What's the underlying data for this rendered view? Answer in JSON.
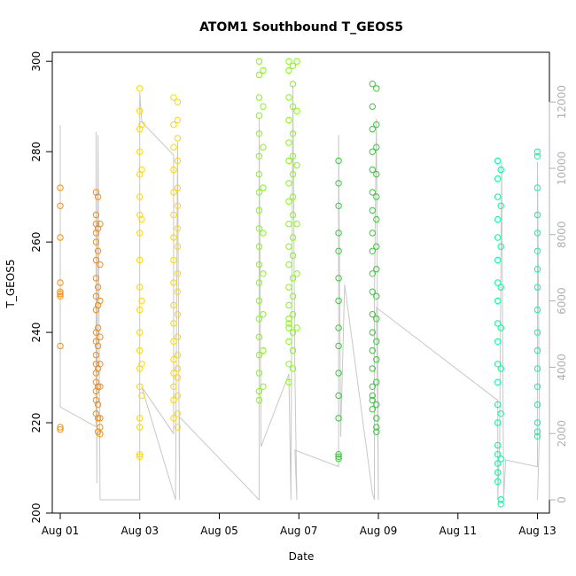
{
  "chart_data": {
    "type": "scatter",
    "title": "ATOM1 Southbound T_GEOS5",
    "xlabel": "Date",
    "ylabel": "T_GEOS5",
    "x_ticks": [
      "Aug 01",
      "Aug 03",
      "Aug 05",
      "Aug 07",
      "Aug 09",
      "Aug 11",
      "Aug 13"
    ],
    "x_tick_days": [
      1,
      3,
      5,
      7,
      9,
      11,
      13
    ],
    "xlim_days": [
      0.8,
      13.3
    ],
    "ylim": [
      200,
      302
    ],
    "y_ticks": [
      200,
      220,
      240,
      260,
      280,
      300
    ],
    "y2_ticks": [
      0,
      2000,
      4000,
      6000,
      8000,
      10000,
      12000
    ],
    "y2lim": [
      -400,
      13500
    ],
    "grid": false,
    "series": [
      {
        "color": "#ff8c00",
        "points": [
          [
            1.0,
            272
          ],
          [
            1.0,
            268
          ],
          [
            1.0,
            261
          ],
          [
            1.0,
            251
          ],
          [
            1.0,
            249
          ],
          [
            1.0,
            248.5
          ],
          [
            1.0,
            248
          ],
          [
            1.0,
            237
          ],
          [
            1.0,
            219
          ],
          [
            1.0,
            218.5
          ],
          [
            1.9,
            271
          ],
          [
            1.9,
            266
          ],
          [
            1.9,
            264
          ],
          [
            1.9,
            262
          ],
          [
            1.9,
            260
          ],
          [
            1.9,
            256
          ],
          [
            1.9,
            252
          ],
          [
            1.9,
            248
          ],
          [
            1.9,
            245
          ],
          [
            1.9,
            240
          ],
          [
            1.9,
            238
          ],
          [
            1.9,
            235
          ],
          [
            1.9,
            233
          ],
          [
            1.9,
            231
          ],
          [
            1.9,
            229
          ],
          [
            1.9,
            227
          ],
          [
            1.9,
            225
          ],
          [
            1.9,
            222
          ],
          [
            1.95,
            270
          ],
          [
            1.95,
            263
          ],
          [
            1.95,
            258
          ],
          [
            1.95,
            250
          ],
          [
            1.95,
            246
          ],
          [
            1.95,
            241
          ],
          [
            1.95,
            237
          ],
          [
            1.95,
            232
          ],
          [
            1.95,
            228
          ],
          [
            1.95,
            224
          ],
          [
            1.95,
            221
          ],
          [
            1.95,
            218
          ],
          [
            2.0,
            264
          ],
          [
            2.0,
            255
          ],
          [
            2.0,
            247
          ],
          [
            2.0,
            239
          ],
          [
            2.0,
            233
          ],
          [
            2.0,
            228
          ],
          [
            2.0,
            221
          ],
          [
            2.0,
            219
          ],
          [
            2.0,
            217.5
          ]
        ]
      },
      {
        "color": "#ffd700",
        "points": [
          [
            3.0,
            294
          ],
          [
            3.0,
            289
          ],
          [
            3.0,
            285
          ],
          [
            3.0,
            280
          ],
          [
            3.0,
            275
          ],
          [
            3.0,
            270
          ],
          [
            3.0,
            266
          ],
          [
            3.0,
            262
          ],
          [
            3.0,
            256
          ],
          [
            3.0,
            250
          ],
          [
            3.0,
            245
          ],
          [
            3.0,
            240
          ],
          [
            3.0,
            236
          ],
          [
            3.0,
            232
          ],
          [
            3.0,
            228
          ],
          [
            3.0,
            221
          ],
          [
            3.0,
            219
          ],
          [
            3.0,
            213
          ],
          [
            3.0,
            212.5
          ],
          [
            3.05,
            286
          ],
          [
            3.05,
            276
          ],
          [
            3.05,
            265
          ],
          [
            3.05,
            247
          ],
          [
            3.05,
            233
          ],
          [
            3.05,
            226
          ],
          [
            3.85,
            292
          ],
          [
            3.85,
            286
          ],
          [
            3.85,
            281
          ],
          [
            3.85,
            276
          ],
          [
            3.85,
            271
          ],
          [
            3.85,
            266
          ],
          [
            3.85,
            261
          ],
          [
            3.85,
            256
          ],
          [
            3.85,
            251
          ],
          [
            3.85,
            246
          ],
          [
            3.85,
            242
          ],
          [
            3.85,
            238
          ],
          [
            3.85,
            234
          ],
          [
            3.85,
            231
          ],
          [
            3.85,
            228
          ],
          [
            3.85,
            225
          ],
          [
            3.85,
            221
          ],
          [
            3.95,
            291
          ],
          [
            3.95,
            287
          ],
          [
            3.95,
            283
          ],
          [
            3.95,
            278
          ],
          [
            3.95,
            272
          ],
          [
            3.95,
            268
          ],
          [
            3.95,
            263
          ],
          [
            3.95,
            259
          ],
          [
            3.95,
            253
          ],
          [
            3.95,
            249
          ],
          [
            3.95,
            244
          ],
          [
            3.95,
            239
          ],
          [
            3.95,
            235
          ],
          [
            3.95,
            232
          ],
          [
            3.95,
            230
          ],
          [
            3.95,
            226
          ],
          [
            3.95,
            222
          ],
          [
            3.95,
            219
          ]
        ]
      },
      {
        "color": "#7fff00",
        "points": [
          [
            6.0,
            300
          ],
          [
            6.0,
            297
          ],
          [
            6.0,
            292
          ],
          [
            6.0,
            288
          ],
          [
            6.0,
            284
          ],
          [
            6.0,
            279
          ],
          [
            6.0,
            275
          ],
          [
            6.0,
            271
          ],
          [
            6.0,
            267
          ],
          [
            6.0,
            263
          ],
          [
            6.0,
            259
          ],
          [
            6.0,
            255
          ],
          [
            6.0,
            251
          ],
          [
            6.0,
            247
          ],
          [
            6.0,
            243
          ],
          [
            6.0,
            239
          ],
          [
            6.0,
            235
          ],
          [
            6.0,
            231
          ],
          [
            6.0,
            227
          ],
          [
            6.0,
            225
          ],
          [
            6.1,
            298
          ],
          [
            6.1,
            290
          ],
          [
            6.1,
            281
          ],
          [
            6.1,
            272
          ],
          [
            6.1,
            262
          ],
          [
            6.1,
            253
          ],
          [
            6.1,
            244
          ],
          [
            6.1,
            236
          ],
          [
            6.1,
            228
          ],
          [
            6.75,
            300
          ],
          [
            6.75,
            298
          ],
          [
            6.75,
            292
          ],
          [
            6.75,
            287
          ],
          [
            6.75,
            282
          ],
          [
            6.75,
            278
          ],
          [
            6.75,
            273
          ],
          [
            6.75,
            269
          ],
          [
            6.75,
            264
          ],
          [
            6.75,
            259
          ],
          [
            6.75,
            255
          ],
          [
            6.75,
            250
          ],
          [
            6.75,
            246
          ],
          [
            6.75,
            243
          ],
          [
            6.75,
            242
          ],
          [
            6.75,
            241
          ],
          [
            6.75,
            238
          ],
          [
            6.75,
            233
          ],
          [
            6.75,
            229
          ],
          [
            6.85,
            299
          ],
          [
            6.85,
            295
          ],
          [
            6.85,
            290
          ],
          [
            6.85,
            284
          ],
          [
            6.85,
            279
          ],
          [
            6.85,
            275
          ],
          [
            6.85,
            270
          ],
          [
            6.85,
            266
          ],
          [
            6.85,
            261
          ],
          [
            6.85,
            257
          ],
          [
            6.85,
            252
          ],
          [
            6.85,
            248
          ],
          [
            6.85,
            244
          ],
          [
            6.85,
            240
          ],
          [
            6.85,
            236
          ],
          [
            6.85,
            232
          ],
          [
            6.95,
            300
          ],
          [
            6.95,
            289
          ],
          [
            6.95,
            277
          ],
          [
            6.95,
            264
          ],
          [
            6.95,
            253
          ],
          [
            6.95,
            241
          ]
        ]
      },
      {
        "color": "#32cd32",
        "points": [
          [
            8.0,
            278
          ],
          [
            8.0,
            273
          ],
          [
            8.0,
            268
          ],
          [
            8.0,
            262
          ],
          [
            8.0,
            258
          ],
          [
            8.0,
            252
          ],
          [
            8.0,
            247
          ],
          [
            8.0,
            241
          ],
          [
            8.0,
            237
          ],
          [
            8.0,
            231
          ],
          [
            8.0,
            226
          ],
          [
            8.0,
            221
          ],
          [
            8.0,
            213
          ],
          [
            8.0,
            212.5
          ],
          [
            8.0,
            212
          ],
          [
            8.85,
            295
          ],
          [
            8.85,
            290
          ],
          [
            8.85,
            285
          ],
          [
            8.85,
            280
          ],
          [
            8.85,
            276
          ],
          [
            8.85,
            271
          ],
          [
            8.85,
            267
          ],
          [
            8.85,
            262
          ],
          [
            8.85,
            258
          ],
          [
            8.85,
            253
          ],
          [
            8.85,
            249
          ],
          [
            8.85,
            244
          ],
          [
            8.85,
            240
          ],
          [
            8.85,
            236
          ],
          [
            8.85,
            232
          ],
          [
            8.85,
            228
          ],
          [
            8.85,
            226
          ],
          [
            8.85,
            225
          ],
          [
            8.85,
            223
          ],
          [
            8.95,
            294
          ],
          [
            8.95,
            286
          ],
          [
            8.95,
            281
          ],
          [
            8.95,
            275
          ],
          [
            8.95,
            270
          ],
          [
            8.95,
            265
          ],
          [
            8.95,
            259
          ],
          [
            8.95,
            254
          ],
          [
            8.95,
            248
          ],
          [
            8.95,
            243
          ],
          [
            8.95,
            238
          ],
          [
            8.95,
            234
          ],
          [
            8.95,
            229
          ],
          [
            8.95,
            224
          ],
          [
            8.95,
            221
          ],
          [
            8.95,
            219
          ],
          [
            8.95,
            218
          ]
        ]
      },
      {
        "color": "#00fa9a",
        "points": [
          [
            12.0,
            278
          ],
          [
            12.0,
            274
          ],
          [
            12.0,
            270
          ],
          [
            12.0,
            265
          ],
          [
            12.0,
            261
          ],
          [
            12.0,
            256
          ],
          [
            12.0,
            251
          ],
          [
            12.0,
            247
          ],
          [
            12.0,
            242
          ],
          [
            12.0,
            238
          ],
          [
            12.0,
            233
          ],
          [
            12.0,
            229
          ],
          [
            12.0,
            224
          ],
          [
            12.0,
            220
          ],
          [
            12.0,
            215
          ],
          [
            12.0,
            213
          ],
          [
            12.0,
            211
          ],
          [
            12.0,
            209
          ],
          [
            12.0,
            207
          ],
          [
            12.08,
            276
          ],
          [
            12.08,
            268
          ],
          [
            12.08,
            259
          ],
          [
            12.08,
            250
          ],
          [
            12.08,
            241
          ],
          [
            12.08,
            232
          ],
          [
            12.08,
            222
          ],
          [
            12.08,
            212
          ],
          [
            12.08,
            203
          ],
          [
            12.08,
            202
          ],
          [
            13.0,
            280
          ],
          [
            13.0,
            279
          ],
          [
            13.0,
            272
          ],
          [
            13.0,
            266
          ],
          [
            13.0,
            262
          ],
          [
            13.0,
            258
          ],
          [
            13.0,
            254
          ],
          [
            13.0,
            250
          ],
          [
            13.0,
            245
          ],
          [
            13.0,
            240
          ],
          [
            13.0,
            236
          ],
          [
            13.0,
            232
          ],
          [
            13.0,
            228
          ],
          [
            13.0,
            224
          ],
          [
            13.0,
            220
          ],
          [
            13.0,
            218
          ],
          [
            13.0,
            217
          ]
        ]
      }
    ],
    "altitude_line": {
      "color": "#c8c8c8",
      "points": [
        [
          1.0,
          11300
        ],
        [
          1.0,
          2800
        ],
        [
          1.9,
          2200
        ],
        [
          1.9,
          11100
        ],
        [
          1.92,
          500
        ],
        [
          1.95,
          11000
        ],
        [
          2.0,
          0
        ],
        [
          3.0,
          0
        ],
        [
          3.0,
          12300
        ],
        [
          3.05,
          11400
        ],
        [
          3.85,
          10400
        ],
        [
          3.85,
          2000
        ],
        [
          3.05,
          3400
        ],
        [
          3.9,
          0
        ],
        [
          3.95,
          10800
        ],
        [
          4.0,
          0
        ],
        [
          4.0,
          2500
        ],
        [
          6.0,
          0
        ],
        [
          6.0,
          11500
        ],
        [
          6.05,
          1600
        ],
        [
          6.75,
          3800
        ],
        [
          6.8,
          0
        ],
        [
          6.85,
          12500
        ],
        [
          6.9,
          3800
        ],
        [
          6.95,
          0
        ],
        [
          6.9,
          1500
        ],
        [
          8.0,
          1000
        ],
        [
          8.0,
          11000
        ],
        [
          8.05,
          1900
        ],
        [
          8.15,
          6500
        ],
        [
          8.85,
          200
        ],
        [
          8.9,
          0
        ],
        [
          8.9,
          6000
        ],
        [
          8.95,
          11500
        ],
        [
          9.0,
          0
        ],
        [
          8.95,
          5800
        ],
        [
          12.0,
          3000
        ],
        [
          12.0,
          0
        ],
        [
          12.05,
          1800
        ],
        [
          12.1,
          10200
        ],
        [
          12.15,
          0
        ],
        [
          12.2,
          1200
        ],
        [
          13.0,
          1000
        ],
        [
          13.0,
          10200
        ],
        [
          13.05,
          2000
        ],
        [
          13.0,
          0
        ]
      ]
    }
  }
}
